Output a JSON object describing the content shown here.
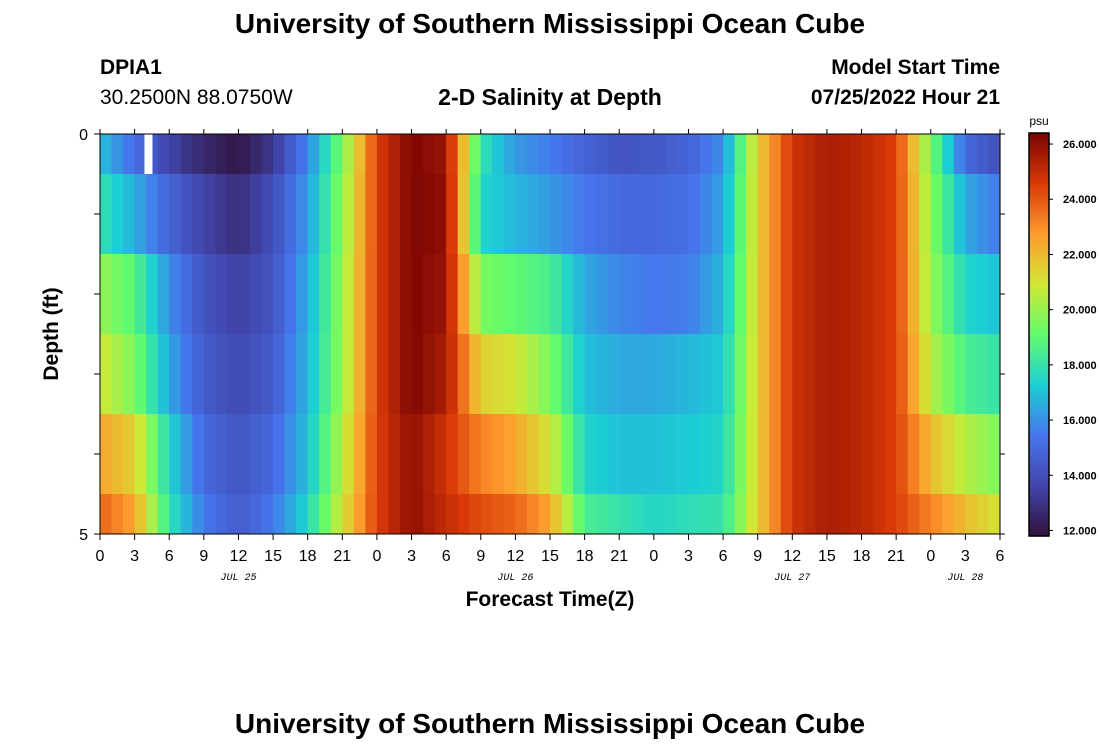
{
  "header": {
    "title": "University of Southern Mississippi Ocean Cube",
    "station_id": "DPIA1",
    "station_coords": "30.2500N  88.0750W",
    "subtitle": "2-D Salinity at Depth",
    "model_start_label": "Model Start Time",
    "model_start_value": "07/25/2022 Hour 21"
  },
  "footer": {
    "title": "University of Southern Mississippi Ocean Cube"
  },
  "chart_data": {
    "type": "heatmap",
    "title": "2-D Salinity at Depth",
    "xlabel": "Forecast Time(Z)",
    "ylabel": "Depth (ft)",
    "colorbar_unit": "psu",
    "colorbar_ticks": [
      "12.000",
      "14.000",
      "16.000",
      "18.000",
      "20.000",
      "22.000",
      "24.000",
      "26.000"
    ],
    "colorbar_range": [
      11.8,
      26.4
    ],
    "colors": [
      "#30123b",
      "#4145ab",
      "#4675ed",
      "#1bcfd4",
      "#61fc6c",
      "#d1e834",
      "#fe9b2d",
      "#db3a07",
      "#7a0403"
    ],
    "y_ticks": [
      "0",
      "5"
    ],
    "y_range": [
      0,
      5
    ],
    "x_tick_labels": [
      "0",
      "3",
      "6",
      "9",
      "12",
      "15",
      "18",
      "21",
      "0",
      "3",
      "6",
      "9",
      "12",
      "15",
      "18",
      "21",
      "0",
      "3",
      "6",
      "9",
      "12",
      "15",
      "18",
      "21",
      "0",
      "3",
      "6"
    ],
    "day_labels": [
      "JUL 25",
      "JUL 26",
      "JUL 27",
      "JUL 28"
    ],
    "x_range_hours": [
      0,
      78
    ],
    "depth_bands_ft": [
      [
        0,
        0.5
      ],
      [
        0.5,
        1.5
      ],
      [
        1.5,
        2.5
      ],
      [
        2.5,
        3.5
      ],
      [
        3.5,
        4.5
      ],
      [
        4.5,
        5
      ]
    ],
    "time_hours": [
      0,
      3,
      6,
      9,
      12,
      15,
      18,
      21,
      24,
      27,
      30,
      33,
      36,
      39,
      42,
      45,
      48,
      51,
      54,
      57,
      60,
      63,
      66,
      69,
      72,
      75,
      78
    ],
    "missing": [
      {
        "hour": 4.2,
        "depth_from": 0,
        "depth_to": 0.5
      }
    ],
    "salinity_psu": [
      [
        17.0,
        15.2,
        13.6,
        12.6,
        12.0,
        13.2,
        15.8,
        19.5,
        24.5,
        26.3,
        25.8,
        18.0,
        16.2,
        15.6,
        14.8,
        14.2,
        14.4,
        14.8,
        16.0,
        21.5,
        24.8,
        25.5,
        25.2,
        24.5,
        19.5,
        15.0,
        14.0
      ],
      [
        18.0,
        16.6,
        14.8,
        13.6,
        12.8,
        14.0,
        16.2,
        19.8,
        24.5,
        26.3,
        26.0,
        17.5,
        16.8,
        16.2,
        15.5,
        15.0,
        15.0,
        15.2,
        16.4,
        21.5,
        24.8,
        25.5,
        25.2,
        24.5,
        19.8,
        16.5,
        15.5
      ],
      [
        20.0,
        18.8,
        16.0,
        14.2,
        13.5,
        14.2,
        16.6,
        20.0,
        24.5,
        26.3,
        25.8,
        19.5,
        19.0,
        18.5,
        16.5,
        15.8,
        15.5,
        15.6,
        16.8,
        21.5,
        24.8,
        25.5,
        25.2,
        24.5,
        20.0,
        17.5,
        17.0
      ],
      [
        21.0,
        19.5,
        16.5,
        14.5,
        13.8,
        14.5,
        16.8,
        20.0,
        24.5,
        26.3,
        25.5,
        21.5,
        21.0,
        19.5,
        17.0,
        16.5,
        16.5,
        16.8,
        17.2,
        21.5,
        24.8,
        25.5,
        25.2,
        24.5,
        20.5,
        18.5,
        18.0
      ],
      [
        22.5,
        21.5,
        17.5,
        15.0,
        14.2,
        15.0,
        17.0,
        20.5,
        24.5,
        26.0,
        24.8,
        23.2,
        22.5,
        21.0,
        17.5,
        17.0,
        17.0,
        17.2,
        17.5,
        21.5,
        24.8,
        25.5,
        25.2,
        24.5,
        22.0,
        20.5,
        19.5
      ],
      [
        23.8,
        22.5,
        18.0,
        15.5,
        14.5,
        15.5,
        17.5,
        21.0,
        24.5,
        26.0,
        25.0,
        24.2,
        23.8,
        22.5,
        18.5,
        18.0,
        17.5,
        17.8,
        18.0,
        21.5,
        24.8,
        25.5,
        25.2,
        24.5,
        23.2,
        22.0,
        21.0
      ]
    ]
  }
}
